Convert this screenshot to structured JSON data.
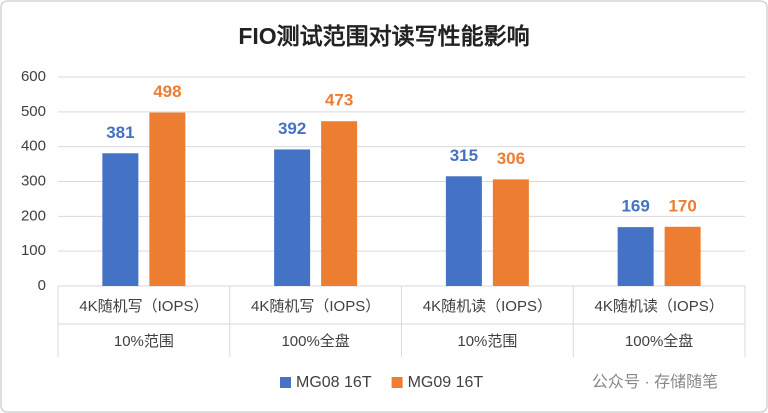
{
  "chart_data": {
    "type": "bar",
    "title": "FIO测试范围对读写性能影响",
    "categories": [
      "4K随机写（IOPS）",
      "4K随机写（IOPS）",
      "4K随机读（IOPS）",
      "4K随机读（IOPS）"
    ],
    "subcategories": [
      "10%范围",
      "100%全盘",
      "10%范围",
      "100%全盘"
    ],
    "series": [
      {
        "name": "MG08 16T",
        "color": "#4472c4",
        "values": [
          381,
          392,
          315,
          169
        ]
      },
      {
        "name": "MG09 16T",
        "color": "#ed7d31",
        "values": [
          498,
          473,
          306,
          170
        ]
      }
    ],
    "ylim": [
      0,
      600
    ],
    "yticks": [
      0,
      100,
      200,
      300,
      400,
      500,
      600
    ],
    "grid": true,
    "legend": "bottom",
    "annotation": "公众号 · 存储随笔"
  }
}
